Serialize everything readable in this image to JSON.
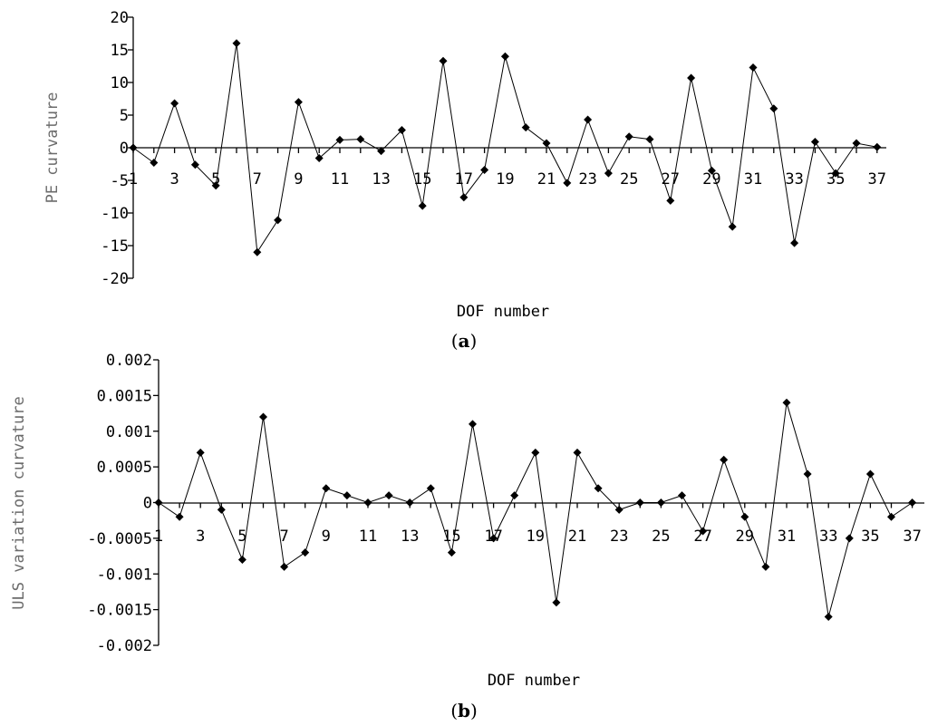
{
  "chart_data": [
    {
      "type": "line",
      "panel": "a",
      "xlabel": "DOF number",
      "ylabel": "PE curvature",
      "ylim": [
        -20,
        20
      ],
      "y_ticks": [
        "20",
        "15",
        "10",
        "5",
        "0",
        "-5",
        "-10",
        "-15",
        "-20"
      ],
      "x_tick_labels": [
        "1",
        "3",
        "5",
        "7",
        "9",
        "11",
        "13",
        "15",
        "17",
        "19",
        "21",
        "23",
        "25",
        "27",
        "29",
        "31",
        "33",
        "35",
        "37"
      ],
      "x": [
        1,
        2,
        3,
        4,
        5,
        6,
        7,
        8,
        9,
        10,
        11,
        12,
        13,
        14,
        15,
        16,
        17,
        18,
        19,
        20,
        21,
        22,
        23,
        24,
        25,
        26,
        27,
        28,
        29,
        30,
        31,
        32,
        33,
        34,
        35,
        36,
        37
      ],
      "values": [
        0,
        -2.3,
        6.8,
        -2.6,
        -5.8,
        16,
        -16,
        -11.1,
        7,
        -1.6,
        1.2,
        1.3,
        -0.5,
        2.7,
        -8.9,
        13.3,
        -7.6,
        -3.4,
        14,
        3.1,
        0.7,
        -5.4,
        4.3,
        -3.9,
        1.7,
        1.3,
        -8.1,
        10.7,
        -3.5,
        -12.1,
        12.3,
        6,
        -14.6,
        0.9,
        -3.9,
        0.7,
        0.1
      ]
    },
    {
      "type": "line",
      "panel": "b",
      "xlabel": "DOF number",
      "ylabel": "ULS variation curvature",
      "ylim": [
        -0.002,
        0.002
      ],
      "y_ticks": [
        "0.002",
        "0.0015",
        "0.001",
        "0.0005",
        "0",
        "-0.0005",
        "-0.001",
        "-0.0015",
        "-0.002"
      ],
      "x_tick_labels": [
        "1",
        "3",
        "5",
        "7",
        "9",
        "11",
        "13",
        "15",
        "17",
        "19",
        "21",
        "23",
        "25",
        "27",
        "29",
        "31",
        "33",
        "35",
        "37"
      ],
      "x": [
        1,
        2,
        3,
        4,
        5,
        6,
        7,
        8,
        9,
        10,
        11,
        12,
        13,
        14,
        15,
        16,
        17,
        18,
        19,
        20,
        21,
        22,
        23,
        24,
        25,
        26,
        27,
        28,
        29,
        30,
        31,
        32,
        33,
        34,
        35,
        36,
        37
      ],
      "values": [
        0,
        -0.0002,
        0.0007,
        -0.0001,
        -0.0008,
        0.0012,
        -0.0009,
        -0.0007,
        0.0002,
        0.0001,
        0,
        0.0001,
        0,
        0.0002,
        -0.0007,
        0.0011,
        -0.0005,
        0.0001,
        0.0007,
        -0.0014,
        0.0007,
        0.0002,
        -0.0001,
        0,
        0,
        0.0001,
        -0.0004,
        0.0006,
        -0.0002,
        -0.0009,
        0.0014,
        0.0004,
        -0.0016,
        -0.0005,
        0.0004,
        -0.0002,
        0
      ]
    }
  ],
  "panel_labels": {
    "a_open": "(",
    "a_letter": "a",
    "a_close": ")",
    "b_open": "(",
    "b_letter": "b",
    "b_close": ")"
  }
}
